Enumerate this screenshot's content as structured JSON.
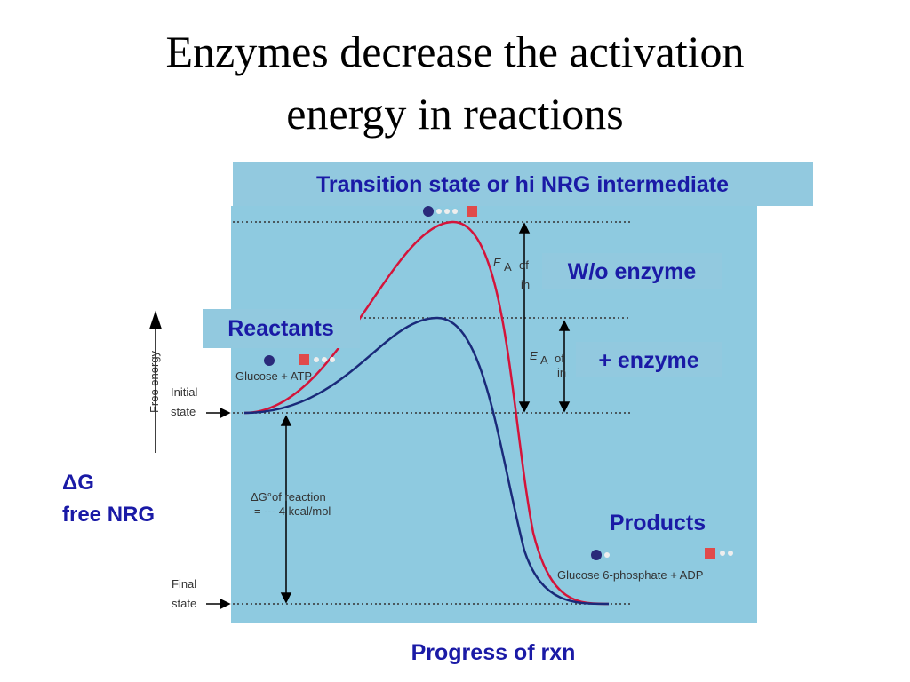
{
  "title": {
    "lines": [
      "Enzymes decrease the activation",
      "energy in reactions"
    ]
  },
  "callouts": {
    "transition": "Transition state or hi NRG intermediate",
    "without_enzyme": "W/o enzyme",
    "with_enzyme": "+ enzyme",
    "reactants": "Reactants",
    "products": "Products",
    "delta_g": [
      "ΔG",
      "free NRG"
    ],
    "x_axis": "Progress of rxn"
  },
  "figure": {
    "y_axis": "Free energy",
    "initial_state": [
      "Initial",
      "state"
    ],
    "final_state": [
      "Final",
      "state"
    ],
    "reactants_label": "Glucose + ATP",
    "products_label": "Glucose 6-phosphate + ADP",
    "delta_g_reaction": [
      "ΔG°of reaction",
      "= --- 4 kcal/mol"
    ],
    "ea_label": "E",
    "ea_sub": "A",
    "ea_of": "of",
    "ea_in": "in"
  }
}
